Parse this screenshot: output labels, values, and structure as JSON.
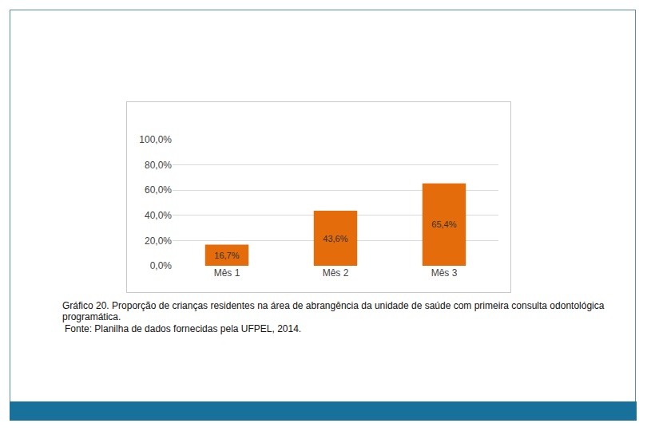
{
  "chart_data": {
    "type": "bar",
    "categories": [
      "Mês 1",
      "Mês 2",
      "Mês 3"
    ],
    "values": [
      16.7,
      43.6,
      65.4
    ],
    "value_labels": [
      "16,7%",
      "43,6%",
      "65,4%"
    ],
    "data_labels": true,
    "color": "#e46c0a",
    "ylim": [
      0,
      100
    ],
    "yticks": [
      {
        "value": 0,
        "label": "0,0%"
      },
      {
        "value": 20,
        "label": "20,0%"
      },
      {
        "value": 40,
        "label": "40,0%"
      },
      {
        "value": 60,
        "label": "60,0%"
      },
      {
        "value": 80,
        "label": "80,0%"
      },
      {
        "value": 100,
        "label": "100,0%"
      }
    ],
    "grid": true
  },
  "caption": "Gráfico 20. Proporção de crianças residentes na área de abrangência da unidade de saúde com primeira consulta odontológica programática.",
  "source": "Fonte: Planilha de dados fornecidas pela UFPEL, 2014."
}
